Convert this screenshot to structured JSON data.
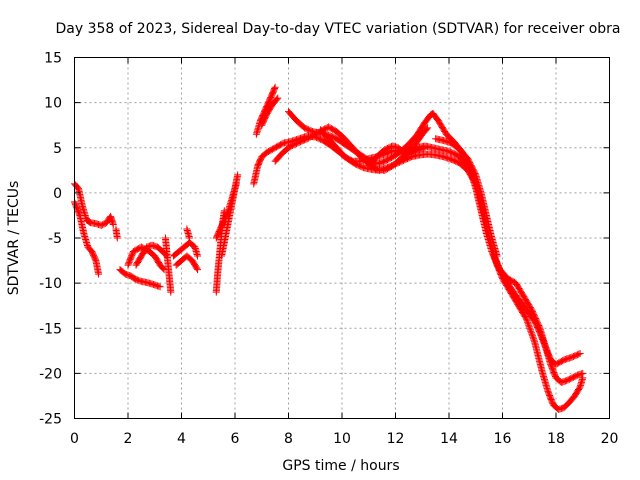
{
  "chart_data": {
    "type": "scatter",
    "title": "Day 358 of 2023, Sidereal Day-to-day VTEC variation (SDTVAR) for receiver obra",
    "xlabel": "GPS time / hours",
    "ylabel": "SDTVAR / TECUs",
    "xlim": [
      0,
      20
    ],
    "ylim": [
      -25,
      15
    ],
    "xticks": [
      0,
      2,
      4,
      6,
      8,
      10,
      12,
      14,
      16,
      18,
      20
    ],
    "yticks": [
      -25,
      -20,
      -15,
      -10,
      -5,
      0,
      5,
      10,
      15
    ],
    "grid": true,
    "marker": "+",
    "series": [
      {
        "name": "satellite tracks",
        "color": "#ff0000",
        "segments": [
          [
            [
              0.0,
              1.0
            ],
            [
              0.15,
              0.5
            ],
            [
              0.3,
              -1.5
            ],
            [
              0.45,
              -3.0
            ],
            [
              0.6,
              -3.3
            ],
            [
              0.8,
              -3.4
            ],
            [
              1.0,
              -3.6
            ],
            [
              1.2,
              -3.3
            ],
            [
              1.35,
              -2.6
            ],
            [
              1.45,
              -3.5
            ]
          ],
          [
            [
              0.0,
              -1.0
            ],
            [
              0.2,
              -2.5
            ],
            [
              0.35,
              -4.5
            ],
            [
              0.5,
              -6.0
            ],
            [
              0.65,
              -6.5
            ],
            [
              0.8,
              -7.5
            ],
            [
              0.9,
              -9.0
            ]
          ],
          [
            [
              1.55,
              -4.0
            ],
            [
              1.6,
              -5.0
            ]
          ],
          [
            [
              1.7,
              -8.5
            ],
            [
              1.9,
              -9.0
            ],
            [
              2.1,
              -9.2
            ],
            [
              2.3,
              -9.6
            ],
            [
              2.5,
              -9.8
            ],
            [
              2.8,
              -10.0
            ],
            [
              3.0,
              -10.2
            ],
            [
              3.2,
              -10.4
            ]
          ],
          [
            [
              2.0,
              -8.0
            ],
            [
              2.2,
              -6.5
            ],
            [
              2.5,
              -6.0
            ],
            [
              2.8,
              -6.5
            ],
            [
              3.0,
              -7.0
            ],
            [
              3.2,
              -8.0
            ],
            [
              3.35,
              -8.5
            ]
          ],
          [
            [
              2.3,
              -8.0
            ],
            [
              2.5,
              -7.0
            ],
            [
              2.7,
              -6.0
            ],
            [
              2.9,
              -5.8
            ],
            [
              3.1,
              -6.0
            ],
            [
              3.3,
              -6.5
            ],
            [
              3.45,
              -7.0
            ]
          ],
          [
            [
              3.4,
              -5.0
            ],
            [
              3.45,
              -6.5
            ],
            [
              3.5,
              -8.0
            ],
            [
              3.55,
              -9.5
            ],
            [
              3.6,
              -11.0
            ]
          ],
          [
            [
              3.7,
              -7.0
            ],
            [
              3.9,
              -6.5
            ],
            [
              4.1,
              -6.0
            ],
            [
              4.3,
              -5.5
            ],
            [
              4.5,
              -6.0
            ],
            [
              4.6,
              -7.0
            ]
          ],
          [
            [
              3.8,
              -8.0
            ],
            [
              4.0,
              -7.5
            ],
            [
              4.2,
              -7.0
            ],
            [
              4.4,
              -7.5
            ],
            [
              4.6,
              -8.5
            ]
          ],
          [
            [
              4.2,
              -4.0
            ],
            [
              4.3,
              -5.0
            ]
          ],
          [
            [
              5.3,
              -11.0
            ],
            [
              5.35,
              -9.0
            ],
            [
              5.4,
              -7.5
            ],
            [
              5.45,
              -6.0
            ],
            [
              5.5,
              -4.5
            ],
            [
              5.55,
              -3.0
            ],
            [
              5.6,
              -2.0
            ]
          ],
          [
            [
              5.3,
              -5.0
            ],
            [
              5.45,
              -4.0
            ],
            [
              5.6,
              -3.0
            ],
            [
              5.75,
              -2.0
            ],
            [
              5.85,
              -1.0
            ],
            [
              5.95,
              0.0
            ],
            [
              6.05,
              1.0
            ]
          ],
          [
            [
              5.5,
              -7.0
            ],
            [
              5.6,
              -5.5
            ],
            [
              5.7,
              -4.0
            ],
            [
              5.8,
              -2.5
            ],
            [
              5.9,
              -1.0
            ],
            [
              6.0,
              0.5
            ],
            [
              6.1,
              2.0
            ]
          ],
          [
            [
              6.7,
              1.0
            ],
            [
              6.85,
              3.0
            ],
            [
              7.0,
              4.0
            ],
            [
              7.2,
              4.5
            ],
            [
              7.5,
              5.0
            ],
            [
              7.8,
              5.5
            ],
            [
              8.1,
              5.7
            ],
            [
              8.4,
              6.0
            ],
            [
              8.7,
              6.3
            ],
            [
              9.0,
              6.2
            ],
            [
              9.3,
              5.8
            ],
            [
              9.6,
              5.2
            ],
            [
              9.9,
              4.5
            ],
            [
              10.2,
              3.8
            ],
            [
              10.5,
              3.2
            ],
            [
              10.8,
              2.8
            ],
            [
              11.1,
              2.6
            ],
            [
              11.4,
              2.5
            ],
            [
              11.7,
              2.8
            ],
            [
              12.0,
              3.2
            ],
            [
              12.3,
              3.6
            ],
            [
              12.6,
              4.0
            ],
            [
              12.9,
              4.2
            ],
            [
              13.2,
              4.3
            ],
            [
              13.5,
              4.2
            ],
            [
              13.8,
              4.0
            ],
            [
              14.1,
              3.7
            ],
            [
              14.4,
              3.3
            ],
            [
              14.7,
              2.5
            ],
            [
              15.0,
              1.0
            ],
            [
              15.2,
              -1.0
            ],
            [
              15.4,
              -3.5
            ],
            [
              15.6,
              -6.0
            ],
            [
              15.8,
              -8.0
            ],
            [
              16.0,
              -9.5
            ],
            [
              16.3,
              -11.0
            ],
            [
              16.6,
              -12.5
            ],
            [
              16.9,
              -14.0
            ],
            [
              17.2,
              -16.5
            ],
            [
              17.5,
              -20.0
            ],
            [
              17.7,
              -22.0
            ],
            [
              17.9,
              -23.5
            ],
            [
              18.1,
              -24.0
            ],
            [
              18.3,
              -23.8
            ],
            [
              18.5,
              -23.2
            ],
            [
              18.7,
              -22.5
            ],
            [
              18.9,
              -21.5
            ],
            [
              19.0,
              -20.5
            ]
          ],
          [
            [
              6.8,
              6.5
            ],
            [
              6.95,
              8.0
            ],
            [
              7.1,
              9.0
            ],
            [
              7.25,
              10.0
            ],
            [
              7.4,
              11.0
            ],
            [
              7.5,
              11.7
            ]
          ],
          [
            [
              7.0,
              7.5
            ],
            [
              7.2,
              8.8
            ],
            [
              7.4,
              9.8
            ],
            [
              7.6,
              10.5
            ]
          ],
          [
            [
              7.5,
              3.5
            ],
            [
              7.8,
              4.5
            ],
            [
              8.1,
              5.2
            ],
            [
              8.4,
              5.6
            ],
            [
              8.7,
              6.0
            ],
            [
              9.0,
              6.5
            ],
            [
              9.3,
              7.0
            ],
            [
              9.5,
              7.3
            ],
            [
              9.8,
              6.8
            ],
            [
              10.1,
              6.0
            ],
            [
              10.4,
              5.0
            ],
            [
              10.7,
              4.0
            ],
            [
              11.0,
              3.2
            ],
            [
              11.3,
              2.6
            ],
            [
              11.6,
              2.5
            ],
            [
              11.9,
              3.0
            ],
            [
              12.2,
              3.8
            ],
            [
              12.5,
              4.5
            ],
            [
              12.8,
              5.0
            ],
            [
              13.1,
              5.2
            ],
            [
              13.4,
              5.0
            ],
            [
              13.7,
              4.8
            ],
            [
              14.0,
              4.6
            ],
            [
              14.3,
              4.2
            ],
            [
              14.6,
              3.5
            ],
            [
              14.9,
              2.0
            ],
            [
              15.1,
              0.0
            ],
            [
              15.3,
              -2.5
            ],
            [
              15.5,
              -5.0
            ],
            [
              15.7,
              -7.0
            ],
            [
              15.9,
              -8.5
            ],
            [
              16.2,
              -9.5
            ],
            [
              16.5,
              -10.0
            ],
            [
              16.8,
              -11.5
            ],
            [
              17.1,
              -13.0
            ],
            [
              17.4,
              -15.0
            ],
            [
              17.6,
              -17.0
            ],
            [
              17.8,
              -19.0
            ],
            [
              18.0,
              -20.5
            ],
            [
              18.2,
              -21.0
            ],
            [
              18.4,
              -20.8
            ],
            [
              18.6,
              -20.5
            ],
            [
              18.8,
              -20.2
            ],
            [
              19.0,
              -20.0
            ]
          ],
          [
            [
              8.0,
              9.0
            ],
            [
              8.3,
              8.0
            ],
            [
              8.6,
              7.2
            ],
            [
              8.9,
              6.8
            ],
            [
              9.2,
              6.6
            ],
            [
              9.5,
              6.4
            ],
            [
              9.8,
              6.0
            ],
            [
              10.1,
              5.4
            ],
            [
              10.4,
              4.8
            ],
            [
              10.7,
              4.2
            ],
            [
              11.0,
              3.6
            ],
            [
              11.3,
              3.2
            ],
            [
              11.6,
              3.5
            ],
            [
              11.9,
              4.0
            ],
            [
              12.2,
              4.6
            ],
            [
              12.5,
              5.4
            ],
            [
              12.8,
              6.4
            ],
            [
              13.1,
              7.8
            ],
            [
              13.3,
              8.6
            ],
            [
              13.4,
              8.8
            ],
            [
              13.6,
              8.0
            ],
            [
              13.9,
              6.5
            ],
            [
              14.2,
              5.6
            ],
            [
              14.5,
              4.5
            ],
            [
              14.8,
              2.5
            ],
            [
              15.0,
              0.5
            ],
            [
              15.2,
              -2.0
            ],
            [
              15.4,
              -4.5
            ],
            [
              15.6,
              -6.5
            ],
            [
              15.8,
              -8.0
            ],
            [
              16.0,
              -9.0
            ],
            [
              16.3,
              -10.5
            ],
            [
              16.6,
              -11.8
            ],
            [
              16.9,
              -13.0
            ],
            [
              17.2,
              -14.2
            ],
            [
              17.4,
              -15.5
            ],
            [
              17.6,
              -17.0
            ],
            [
              17.8,
              -18.5
            ],
            [
              18.0,
              -19.0
            ],
            [
              18.3,
              -18.5
            ],
            [
              18.6,
              -18.2
            ],
            [
              18.9,
              -17.8
            ]
          ],
          [
            [
              9.2,
              7.0
            ],
            [
              9.5,
              6.0
            ],
            [
              9.8,
              5.0
            ],
            [
              10.1,
              4.0
            ],
            [
              10.4,
              3.5
            ],
            [
              10.7,
              3.5
            ],
            [
              11.0,
              3.8
            ],
            [
              11.3,
              4.0
            ],
            [
              11.6,
              4.3
            ],
            [
              11.9,
              4.7
            ],
            [
              12.2,
              4.5
            ],
            [
              12.5,
              4.3
            ],
            [
              12.8,
              4.7
            ],
            [
              13.1,
              5.0
            ]
          ],
          [
            [
              11.0,
              3.0
            ],
            [
              11.3,
              4.0
            ],
            [
              11.6,
              4.8
            ],
            [
              11.9,
              5.2
            ],
            [
              12.1,
              5.0
            ],
            [
              12.3,
              4.5
            ],
            [
              12.5,
              4.8
            ],
            [
              12.7,
              5.2
            ],
            [
              13.0,
              6.5
            ],
            [
              13.2,
              7.2
            ]
          ],
          [
            [
              13.5,
              6.0
            ],
            [
              13.8,
              5.8
            ],
            [
              14.1,
              5.5
            ],
            [
              14.4,
              4.8
            ],
            [
              14.7,
              3.8
            ],
            [
              15.0,
              2.0
            ],
            [
              15.2,
              0.0
            ],
            [
              15.4,
              -2.5
            ],
            [
              15.6,
              -5.0
            ],
            [
              15.8,
              -7.0
            ]
          ]
        ]
      }
    ]
  }
}
